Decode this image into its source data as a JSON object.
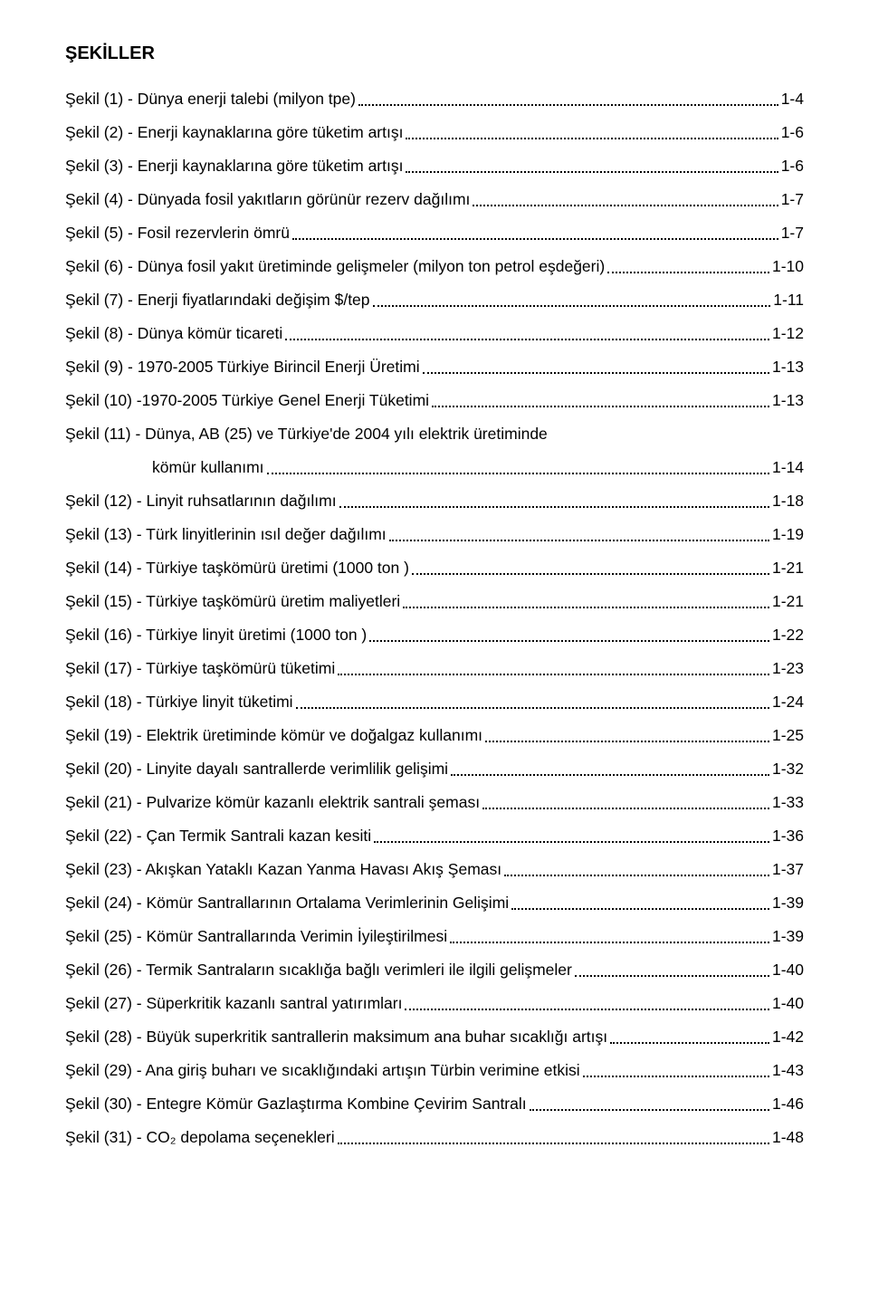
{
  "title": "ŞEKİLLER",
  "entries": [
    {
      "label": "Şekil (1) - Dünya enerji talebi (milyon tpe)",
      "page": "1-4"
    },
    {
      "label": "Şekil (2) - Enerji kaynaklarına göre tüketim artışı",
      "page": "1-6"
    },
    {
      "label": "Şekil (3) - Enerji kaynaklarına göre tüketim artışı",
      "page": "1-6"
    },
    {
      "label": "Şekil (4) - Dünyada fosil yakıtların görünür rezerv dağılımı",
      "page": "1-7"
    },
    {
      "label": "Şekil (5) - Fosil rezervlerin ömrü",
      "page": "1-7"
    },
    {
      "label": "Şekil (6) - Dünya fosil yakıt üretiminde gelişmeler  (milyon ton petrol eşdeğeri)",
      "page": "1-10"
    },
    {
      "label": "Şekil (7) - Enerji fiyatlarındaki değişim $/tep",
      "page": "1-11"
    },
    {
      "label": "Şekil (8) - Dünya kömür ticareti",
      "page": "1-12"
    },
    {
      "label": "Şekil (9) - 1970-2005 Türkiye Birincil Enerji Üretimi",
      "page": "1-13"
    },
    {
      "label": "Şekil (10) -1970-2005 Türkiye Genel Enerji Tüketimi",
      "page": "1-13"
    },
    {
      "wrap": true,
      "line1": "Şekil (11) - Dünya, AB (25) ve Türkiye'de 2004 yılı elektrik üretiminde",
      "line2": "kömür kullanımı",
      "page": "1-14"
    },
    {
      "label": "Şekil (12) - Linyit ruhsatlarının dağılımı",
      "page": "1-18"
    },
    {
      "label": "Şekil (13) - Türk linyitlerinin ısıl değer dağılımı",
      "page": "1-19"
    },
    {
      "label": "Şekil (14) - Türkiye taşkömürü üretimi (1000 ton )",
      "page": "1-21"
    },
    {
      "label": "Şekil (15) - Türkiye taşkömürü üretim maliyetleri",
      "page": "1-21"
    },
    {
      "label": "Şekil (16) - Türkiye linyit üretimi (1000 ton )",
      "page": "1-22"
    },
    {
      "label": "Şekil (17) - Türkiye taşkömürü tüketimi",
      "page": "1-23"
    },
    {
      "label": "Şekil (18) - Türkiye linyit tüketimi",
      "page": "1-24"
    },
    {
      "label": "Şekil (19) - Elektrik üretiminde kömür ve doğalgaz kullanımı",
      "page": "1-25"
    },
    {
      "label": "Şekil (20) - Linyite dayalı santrallerde verimlilik gelişimi",
      "page": "1-32"
    },
    {
      "label": "Şekil (21) - Pulvarize kömür kazanlı elektrik santrali şeması",
      "page": "1-33"
    },
    {
      "label": "Şekil (22) - Çan Termik Santrali kazan kesiti",
      "page": "1-36"
    },
    {
      "label": "Şekil (23) - Akışkan Yataklı Kazan Yanma Havası Akış Şeması",
      "page": "1-37"
    },
    {
      "label": "Şekil (24) - Kömür Santrallarının Ortalama Verimlerinin Gelişimi",
      "page": "1-39"
    },
    {
      "label": "Şekil (25) - Kömür Santrallarında Verimin İyileştirilmesi",
      "page": "1-39"
    },
    {
      "label": "Şekil (26) - Termik Santraların sıcaklığa bağlı verimleri ile ilgili gelişmeler",
      "page": "1-40"
    },
    {
      "label": "Şekil (27) - Süperkritik kazanlı santral yatırımları",
      "page": "1-40"
    },
    {
      "label": "Şekil (28) - Büyük superkritik santrallerin maksimum ana buhar sıcaklığı artışı",
      "page": "1-42"
    },
    {
      "label": "Şekil (29) - Ana giriş buharı ve sıcaklığındaki artışın Türbin verimine etkisi",
      "page": "1-43"
    },
    {
      "label": "Şekil (30) - Entegre Kömür Gazlaştırma Kombine Çevirim Santralı",
      "page": "1-46"
    },
    {
      "label": "Şekil (31) - CO₂ depolama seçenekleri",
      "page": "1-48"
    }
  ]
}
